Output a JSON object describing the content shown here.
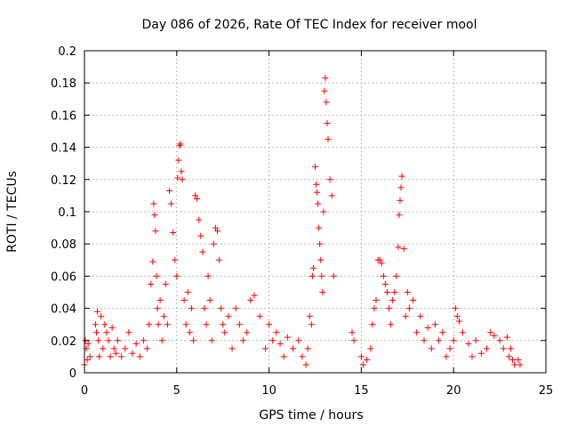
{
  "chart_data": {
    "type": "scatter",
    "title": "Day 086 of 2026, Rate Of TEC Index for receiver mool",
    "xlabel": "GPS time / hours",
    "ylabel": "ROTI / TECUs",
    "xlim": [
      0,
      25
    ],
    "ylim": [
      0,
      0.2
    ],
    "xticks": [
      0,
      5,
      10,
      15,
      20,
      25
    ],
    "xtick_labels": [
      "0",
      "5",
      "10",
      "15",
      "20",
      "25"
    ],
    "yticks": [
      0,
      0.02,
      0.04,
      0.06,
      0.08,
      0.1,
      0.12,
      0.14,
      0.16,
      0.18,
      0.2
    ],
    "ytick_labels": [
      "0",
      "0.02",
      "0.04",
      "0.06",
      "0.08",
      "0.1",
      "0.12",
      "0.14",
      "0.16",
      "0.18",
      "0.2"
    ],
    "grid": true,
    "marker": "+",
    "color": "#ff0000",
    "series": [
      {
        "x": [
          0.0,
          0.05,
          0.1,
          0.15,
          0.2,
          0.3,
          0.6,
          0.65,
          0.7,
          0.75,
          0.8,
          0.9,
          1.0,
          1.1,
          1.2,
          1.3,
          1.4,
          1.5,
          1.6,
          1.7,
          1.8,
          2.0,
          2.2,
          2.4,
          2.6,
          2.8,
          3.0,
          3.2,
          3.4,
          3.5,
          3.6,
          3.7,
          3.75,
          3.8,
          3.85,
          3.9,
          3.95,
          4.0,
          4.1,
          4.2,
          4.3,
          4.4,
          4.5,
          4.6,
          4.7,
          4.8,
          4.9,
          5.0,
          5.05,
          5.1,
          5.15,
          5.2,
          5.25,
          5.3,
          5.4,
          5.5,
          5.6,
          5.7,
          5.8,
          5.9,
          6.0,
          6.1,
          6.2,
          6.3,
          6.4,
          6.5,
          6.6,
          6.7,
          6.8,
          6.9,
          7.0,
          7.1,
          7.2,
          7.3,
          7.4,
          7.5,
          7.6,
          7.8,
          8.0,
          8.2,
          8.4,
          8.6,
          8.8,
          9.0,
          9.2,
          9.5,
          9.8,
          10.0,
          10.2,
          10.4,
          10.6,
          10.8,
          11.0,
          11.3,
          11.6,
          11.8,
          12.0,
          12.1,
          12.2,
          12.3,
          12.35,
          12.4,
          12.5,
          12.55,
          12.6,
          12.65,
          12.7,
          12.75,
          12.8,
          12.85,
          12.9,
          12.95,
          13.0,
          13.05,
          13.1,
          13.15,
          13.2,
          13.3,
          13.4,
          13.5,
          14.5,
          14.6,
          15.0,
          15.1,
          15.3,
          15.5,
          15.6,
          15.7,
          15.8,
          15.9,
          16.0,
          16.1,
          16.2,
          16.3,
          16.4,
          16.5,
          16.6,
          16.7,
          16.8,
          16.9,
          17.0,
          17.05,
          17.1,
          17.15,
          17.2,
          17.3,
          17.4,
          17.5,
          17.6,
          17.8,
          18.0,
          18.2,
          18.4,
          18.6,
          18.8,
          19.0,
          19.2,
          19.4,
          19.6,
          19.8,
          20.0,
          20.1,
          20.2,
          20.3,
          20.5,
          20.8,
          21.0,
          21.2,
          21.5,
          21.8,
          22.0,
          22.2,
          22.5,
          22.7,
          22.9,
          23.0,
          23.1,
          23.2,
          23.3,
          23.5,
          23.6
        ],
        "y": [
          0.005,
          0.02,
          0.015,
          0.008,
          0.018,
          0.01,
          0.03,
          0.025,
          0.038,
          0.02,
          0.01,
          0.035,
          0.015,
          0.03,
          0.025,
          0.02,
          0.01,
          0.028,
          0.015,
          0.012,
          0.02,
          0.01,
          0.015,
          0.025,
          0.012,
          0.018,
          0.01,
          0.02,
          0.015,
          0.03,
          0.055,
          0.069,
          0.105,
          0.098,
          0.088,
          0.06,
          0.04,
          0.03,
          0.045,
          0.02,
          0.035,
          0.055,
          0.03,
          0.113,
          0.105,
          0.087,
          0.07,
          0.06,
          0.121,
          0.132,
          0.141,
          0.142,
          0.125,
          0.12,
          0.045,
          0.03,
          0.05,
          0.025,
          0.04,
          0.02,
          0.11,
          0.108,
          0.095,
          0.085,
          0.075,
          0.04,
          0.03,
          0.06,
          0.045,
          0.02,
          0.08,
          0.09,
          0.088,
          0.07,
          0.04,
          0.03,
          0.025,
          0.035,
          0.015,
          0.04,
          0.03,
          0.02,
          0.025,
          0.045,
          0.048,
          0.035,
          0.015,
          0.03,
          0.02,
          0.025,
          0.018,
          0.01,
          0.022,
          0.015,
          0.02,
          0.01,
          0.005,
          0.015,
          0.035,
          0.03,
          0.06,
          0.065,
          0.128,
          0.117,
          0.112,
          0.105,
          0.09,
          0.08,
          0.07,
          0.06,
          0.05,
          0.1,
          0.175,
          0.183,
          0.168,
          0.155,
          0.145,
          0.12,
          0.11,
          0.06,
          0.025,
          0.02,
          0.01,
          0.005,
          0.008,
          0.015,
          0.03,
          0.04,
          0.045,
          0.07,
          0.07,
          0.068,
          0.06,
          0.055,
          0.05,
          0.04,
          0.03,
          0.045,
          0.05,
          0.06,
          0.078,
          0.098,
          0.107,
          0.115,
          0.122,
          0.077,
          0.035,
          0.05,
          0.04,
          0.045,
          0.025,
          0.035,
          0.02,
          0.028,
          0.015,
          0.03,
          0.02,
          0.025,
          0.01,
          0.015,
          0.02,
          0.04,
          0.035,
          0.032,
          0.025,
          0.018,
          0.01,
          0.02,
          0.012,
          0.015,
          0.025,
          0.023,
          0.02,
          0.015,
          0.022,
          0.01,
          0.015,
          0.008,
          0.005,
          0.008,
          0.005
        ]
      }
    ]
  }
}
